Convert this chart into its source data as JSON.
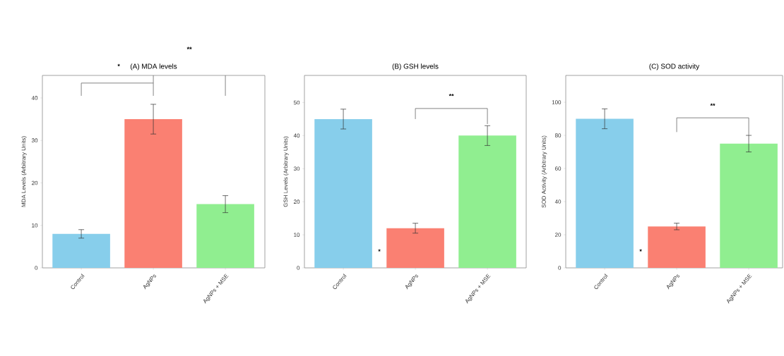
{
  "chart_data": [
    {
      "type": "bar",
      "title": "(A) MDA levels",
      "ylabel": "MDA Levels (Arbitrary Units)",
      "categories": [
        "Control",
        "AgNPs",
        "AgNPs + MSE"
      ],
      "values": [
        8,
        35,
        15
      ],
      "errors": [
        1,
        3.5,
        2
      ],
      "colors": [
        "#87ceeb",
        "#fa8072",
        "#90ee90"
      ],
      "ylim": [
        0,
        45.3
      ],
      "yticks": [
        0,
        10,
        20,
        30,
        40
      ],
      "annotations": [
        "*",
        "**"
      ]
    },
    {
      "type": "bar",
      "title": "(B) GSH levels",
      "ylabel": "GSH Levels (Arbitrary Units)",
      "categories": [
        "Control",
        "AgNPs",
        "AgNPs + MSE"
      ],
      "values": [
        45,
        12,
        40
      ],
      "errors": [
        3,
        1.5,
        3
      ],
      "colors": [
        "#87ceeb",
        "#fa8072",
        "#90ee90"
      ],
      "ylim": [
        0,
        58.2
      ],
      "yticks": [
        0,
        10,
        20,
        30,
        40,
        50
      ],
      "annotations": [
        "*",
        "**"
      ]
    },
    {
      "type": "bar",
      "title": "(C) SOD activity",
      "ylabel": "SOD Activity (Arbitrary Units)",
      "categories": [
        "Control",
        "AgNPs",
        "AgNPs + MSE"
      ],
      "values": [
        90,
        25,
        75
      ],
      "errors": [
        6,
        2,
        5
      ],
      "colors": [
        "#87ceeb",
        "#fa8072",
        "#90ee90"
      ],
      "ylim": [
        0,
        116.2
      ],
      "yticks": [
        0,
        20,
        40,
        60,
        80,
        100
      ],
      "annotations": [
        "*",
        "**"
      ]
    }
  ]
}
